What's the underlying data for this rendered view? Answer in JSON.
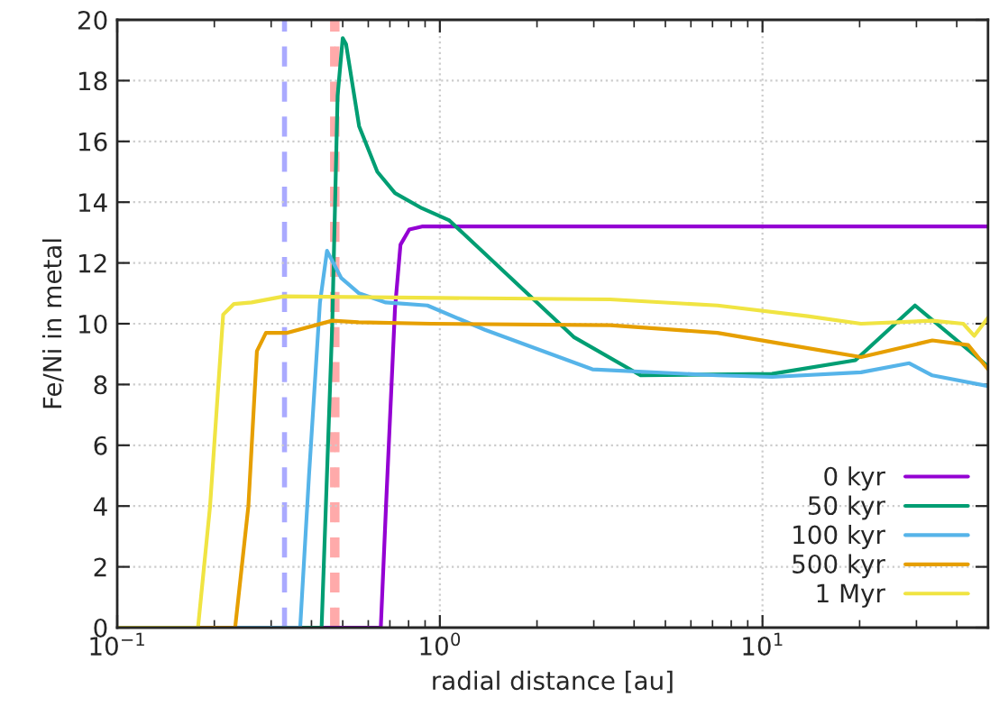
{
  "chart_data": {
    "type": "line",
    "xlabel": "radial distance [au]",
    "ylabel": "Fe/Ni in metal",
    "log": "x",
    "grid": true,
    "legend": "bottom right",
    "line_style": "solid",
    "marker": "none",
    "xlim": [
      0.1,
      50
    ],
    "xticks": [
      {
        "value": 0.1,
        "label": "10$^{−1}$"
      },
      {
        "value": 1,
        "label": "10$^{0}$"
      },
      {
        "value": 10,
        "label": "10$^{1}$"
      }
    ],
    "ylim": [
      0,
      20
    ],
    "yticks": [
      0,
      2,
      4,
      6,
      8,
      10,
      12,
      14,
      16,
      18,
      20
    ],
    "ref_lines": [
      {
        "axis": "x",
        "value": 0.33,
        "color": "#aaaaff",
        "line_style": "dashed"
      },
      {
        "axis": "x",
        "value": 0.465,
        "color": "#ffaaaa",
        "line_style": "dashed"
      },
      {
        "axis": "x",
        "value": 0.48,
        "color": "#ffaaaa",
        "line_style": "dashed"
      }
    ],
    "series": [
      {
        "name": "0 kyr",
        "color": "#9400d3",
        "x": [
          0.1,
          0.656,
          0.681,
          0.726,
          0.755,
          0.804,
          0.88,
          50
        ],
        "values": [
          0,
          0,
          4,
          10.5,
          12.6,
          13.1,
          13.2,
          13.2
        ]
      },
      {
        "name": "50 kyr",
        "color": "#009e73",
        "x": [
          0.1,
          0.43,
          0.464,
          0.482,
          0.5,
          0.512,
          0.562,
          0.64,
          0.726,
          0.88,
          1.07,
          2.61,
          4.19,
          10.7,
          19.4,
          29.7,
          50
        ],
        "values": [
          0,
          0,
          10,
          17.5,
          19.4,
          19.2,
          16.5,
          15,
          14.3,
          13.8,
          13.4,
          9.55,
          8.3,
          8.35,
          8.8,
          10.6,
          8.6
        ]
      },
      {
        "name": "100 kyr",
        "color": "#56b4e9",
        "x": [
          0.1,
          0.369,
          0.393,
          0.425,
          0.447,
          0.495,
          0.562,
          0.68,
          0.915,
          1.38,
          2.97,
          7.25,
          10.7,
          20.2,
          28.5,
          33.6,
          50
        ],
        "values": [
          0,
          0,
          5,
          10.7,
          12.4,
          11.5,
          11,
          10.7,
          10.6,
          9.8,
          8.5,
          8.3,
          8.25,
          8.4,
          8.7,
          8.3,
          7.95
        ]
      },
      {
        "name": "500 kyr",
        "color": "#e69f00",
        "x": [
          0.1,
          0.232,
          0.255,
          0.271,
          0.289,
          0.337,
          0.464,
          0.56,
          0.94,
          3.37,
          7.25,
          12.1,
          20.2,
          33.6,
          43.4,
          50
        ],
        "values": [
          0,
          0,
          4,
          9.1,
          9.7,
          9.7,
          10.1,
          10.05,
          10,
          9.95,
          9.7,
          9.3,
          8.9,
          9.45,
          9.3,
          8.5
        ]
      },
      {
        "name": "1 Myr",
        "color": "#f0e442",
        "x": [
          0.1,
          0.178,
          0.194,
          0.213,
          0.23,
          0.261,
          0.329,
          1.0,
          3.37,
          7.25,
          13.8,
          20.2,
          33.6,
          41.9,
          45.3,
          50
        ],
        "values": [
          0,
          0,
          4,
          10.3,
          10.65,
          10.7,
          10.9,
          10.85,
          10.8,
          10.6,
          10.25,
          10,
          10.1,
          10,
          9.6,
          10.2
        ]
      }
    ]
  }
}
